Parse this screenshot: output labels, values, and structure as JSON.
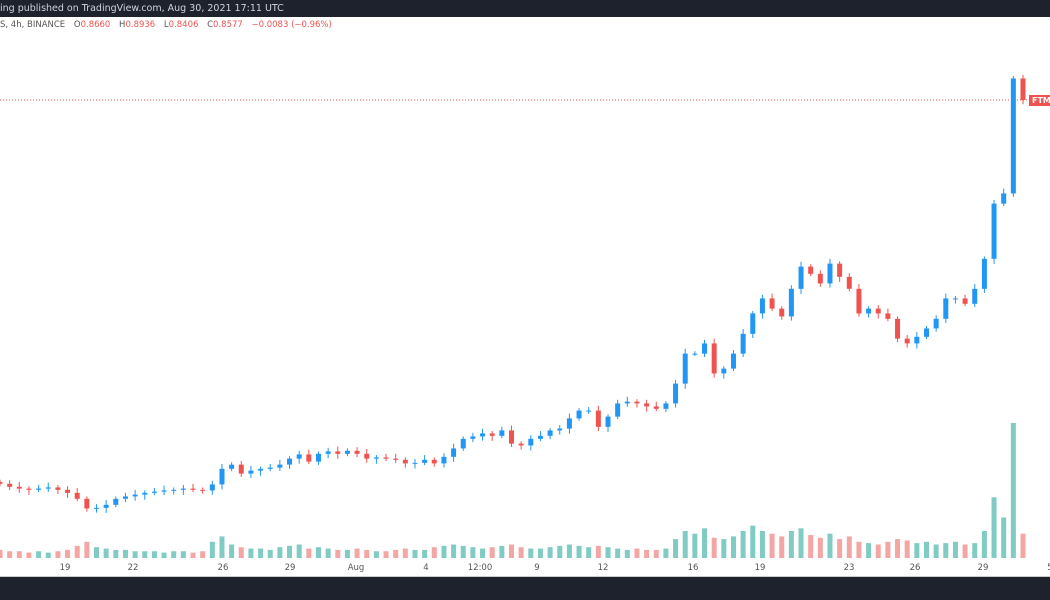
{
  "header": {
    "published": "ing published on TradingView.com, Aug 30, 2021 17:11 UTC"
  },
  "legend": {
    "symbol": "S, 4h, BINANCE",
    "open_label": "O",
    "open": "0.8660",
    "high_label": "H",
    "high": "0.8936",
    "low_label": "L",
    "low": "0.8406",
    "close_label": "C",
    "close": "0.8577",
    "change": "−0.0083 (−0.96%)"
  },
  "price_tag": "FTMU",
  "colors": {
    "up": "#2196f3",
    "down": "#ef5350",
    "vol_up": "#80cbc4",
    "vol_down": "#f4a6a4",
    "bar": "#1e222d"
  },
  "chart_data": {
    "type": "candlestick",
    "x_tick_labels": [
      "19",
      "22",
      "26",
      "29",
      "Aug",
      "4",
      "12:00",
      "9",
      "12",
      "16",
      "19",
      "23",
      "26",
      "29",
      "5"
    ],
    "last_price": 0.8577,
    "closes": [
      0.218,
      0.213,
      0.21,
      0.208,
      0.21,
      0.212,
      0.208,
      0.203,
      0.193,
      0.177,
      0.178,
      0.183,
      0.193,
      0.197,
      0.2,
      0.203,
      0.205,
      0.207,
      0.208,
      0.21,
      0.208,
      0.207,
      0.217,
      0.243,
      0.25,
      0.235,
      0.24,
      0.243,
      0.245,
      0.25,
      0.26,
      0.267,
      0.255,
      0.268,
      0.272,
      0.268,
      0.273,
      0.268,
      0.26,
      0.262,
      0.26,
      0.258,
      0.252,
      0.253,
      0.258,
      0.252,
      0.263,
      0.277,
      0.293,
      0.297,
      0.302,
      0.298,
      0.307,
      0.285,
      0.282,
      0.293,
      0.298,
      0.307,
      0.31,
      0.327,
      0.34,
      0.34,
      0.313,
      0.33,
      0.352,
      0.355,
      0.352,
      0.347,
      0.343,
      0.352,
      0.385,
      0.435,
      0.435,
      0.452,
      0.402,
      0.41,
      0.435,
      0.468,
      0.502,
      0.527,
      0.51,
      0.497,
      0.543,
      0.58,
      0.568,
      0.552,
      0.585,
      0.563,
      0.543,
      0.502,
      0.51,
      0.502,
      0.493,
      0.46,
      0.452,
      0.463,
      0.477,
      0.493,
      0.527,
      0.527,
      0.518,
      0.543,
      0.593,
      0.685,
      0.702,
      0.8936,
      0.8577
    ],
    "relative_volume": [
      6,
      5,
      5,
      4,
      5,
      4,
      5,
      6,
      9,
      12,
      8,
      7,
      6,
      6,
      5,
      5,
      5,
      4,
      5,
      5,
      4,
      5,
      12,
      16,
      10,
      8,
      7,
      7,
      6,
      8,
      9,
      10,
      7,
      8,
      7,
      6,
      6,
      7,
      6,
      5,
      5,
      6,
      7,
      6,
      6,
      8,
      9,
      10,
      9,
      8,
      7,
      8,
      9,
      10,
      8,
      7,
      7,
      8,
      9,
      10,
      9,
      8,
      9,
      8,
      7,
      6,
      7,
      6,
      6,
      7,
      14,
      20,
      18,
      22,
      15,
      14,
      16,
      20,
      24,
      20,
      18,
      16,
      20,
      22,
      17,
      15,
      18,
      14,
      16,
      12,
      11,
      10,
      12,
      14,
      13,
      11,
      12,
      10,
      11,
      12,
      10,
      11,
      20,
      45,
      30,
      100,
      18
    ]
  }
}
